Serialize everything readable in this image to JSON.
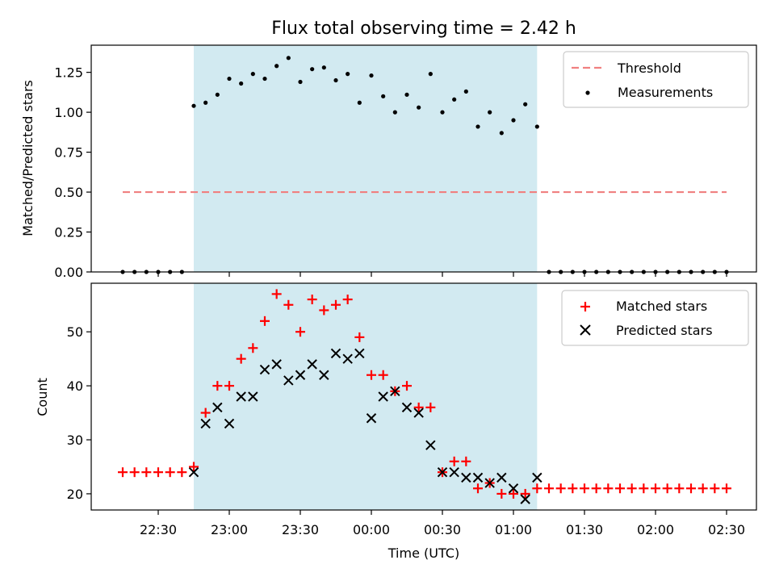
{
  "chart_data": [
    {
      "type": "scatter",
      "title": "Flux total observing time = 2.42 h",
      "xlabel": "",
      "ylabel": "Matched/Predicted stars",
      "ylim": [
        0,
        1.42
      ],
      "yticks": [
        "0.00",
        "0.25",
        "0.50",
        "0.75",
        "1.00",
        "1.25"
      ],
      "observing_window": [
        "22:45",
        "01:10"
      ],
      "threshold": {
        "name": "Threshold",
        "value": 0.5,
        "x_start": "22:15",
        "x_end": "02:30",
        "color": "#f08080"
      },
      "series": [
        {
          "name": "Measurements",
          "color": "#000000",
          "x": [
            "22:15",
            "22:20",
            "22:25",
            "22:30",
            "22:35",
            "22:40",
            "22:45",
            "22:50",
            "22:55",
            "23:00",
            "23:05",
            "23:10",
            "23:15",
            "23:20",
            "23:25",
            "23:30",
            "23:35",
            "23:40",
            "23:45",
            "23:50",
            "23:55",
            "00:00",
            "00:05",
            "00:10",
            "00:15",
            "00:20",
            "00:25",
            "00:30",
            "00:35",
            "00:40",
            "00:45",
            "00:50",
            "00:55",
            "01:00",
            "01:05",
            "01:10",
            "01:15",
            "01:20",
            "01:25",
            "01:30",
            "01:35",
            "01:40",
            "01:45",
            "01:50",
            "01:55",
            "02:00",
            "02:05",
            "02:10",
            "02:15",
            "02:20",
            "02:25",
            "02:30"
          ],
          "values": [
            0,
            0,
            0,
            0,
            0,
            0,
            1.04,
            1.06,
            1.11,
            1.21,
            1.18,
            1.24,
            1.21,
            1.29,
            1.34,
            1.19,
            1.27,
            1.28,
            1.2,
            1.24,
            1.06,
            1.23,
            1.1,
            1.0,
            1.11,
            1.03,
            1.24,
            1.0,
            1.08,
            1.13,
            0.91,
            1.0,
            0.87,
            0.95,
            1.05,
            0.91,
            0,
            0,
            0,
            0,
            0,
            0,
            0,
            0,
            0,
            0,
            0,
            0,
            0,
            0,
            0,
            0
          ]
        }
      ],
      "legend": "top-right",
      "grid": false
    },
    {
      "type": "scatter",
      "title": "",
      "xlabel": "Time (UTC)",
      "ylabel": "Count",
      "ylim": [
        17,
        59
      ],
      "yticks": [
        "20",
        "30",
        "40",
        "50"
      ],
      "xticks": [
        "22:30",
        "23:00",
        "23:30",
        "00:00",
        "00:30",
        "01:00",
        "01:30",
        "02:00",
        "02:30"
      ],
      "observing_window": [
        "22:45",
        "01:10"
      ],
      "series": [
        {
          "name": "Matched stars",
          "color": "#ff0000",
          "marker": "plus",
          "x": [
            "22:15",
            "22:20",
            "22:25",
            "22:30",
            "22:35",
            "22:40",
            "22:45",
            "22:50",
            "22:55",
            "23:00",
            "23:05",
            "23:10",
            "23:15",
            "23:20",
            "23:25",
            "23:30",
            "23:35",
            "23:40",
            "23:45",
            "23:50",
            "23:55",
            "00:00",
            "00:05",
            "00:10",
            "00:15",
            "00:20",
            "00:25",
            "00:30",
            "00:35",
            "00:40",
            "00:45",
            "00:50",
            "00:55",
            "01:00",
            "01:05",
            "01:10",
            "01:15",
            "01:20",
            "01:25",
            "01:30",
            "01:35",
            "01:40",
            "01:45",
            "01:50",
            "01:55",
            "02:00",
            "02:05",
            "02:10",
            "02:15",
            "02:20",
            "02:25",
            "02:30"
          ],
          "values": [
            24,
            24,
            24,
            24,
            24,
            24,
            25,
            35,
            40,
            40,
            45,
            47,
            52,
            57,
            55,
            50,
            56,
            54,
            55,
            56,
            49,
            42,
            42,
            39,
            40,
            36,
            36,
            24,
            26,
            26,
            21,
            22,
            20,
            20,
            20,
            21,
            21,
            21,
            21,
            21,
            21,
            21,
            21,
            21,
            21,
            21,
            21,
            21,
            21,
            21,
            21,
            21
          ]
        },
        {
          "name": "Predicted stars",
          "color": "#000000",
          "marker": "x",
          "x": [
            "22:45",
            "22:50",
            "22:55",
            "23:00",
            "23:05",
            "23:10",
            "23:15",
            "23:20",
            "23:25",
            "23:30",
            "23:35",
            "23:40",
            "23:45",
            "23:50",
            "23:55",
            "00:00",
            "00:05",
            "00:10",
            "00:15",
            "00:20",
            "00:25",
            "00:30",
            "00:35",
            "00:40",
            "00:45",
            "00:50",
            "00:55",
            "01:00",
            "01:05",
            "01:10"
          ],
          "values": [
            24,
            33,
            36,
            33,
            38,
            38,
            43,
            44,
            41,
            42,
            44,
            42,
            46,
            45,
            46,
            34,
            38,
            39,
            36,
            35,
            29,
            24,
            24,
            23,
            23,
            22,
            23,
            21,
            19,
            23
          ]
        }
      ],
      "legend": "top-right",
      "grid": false
    }
  ]
}
